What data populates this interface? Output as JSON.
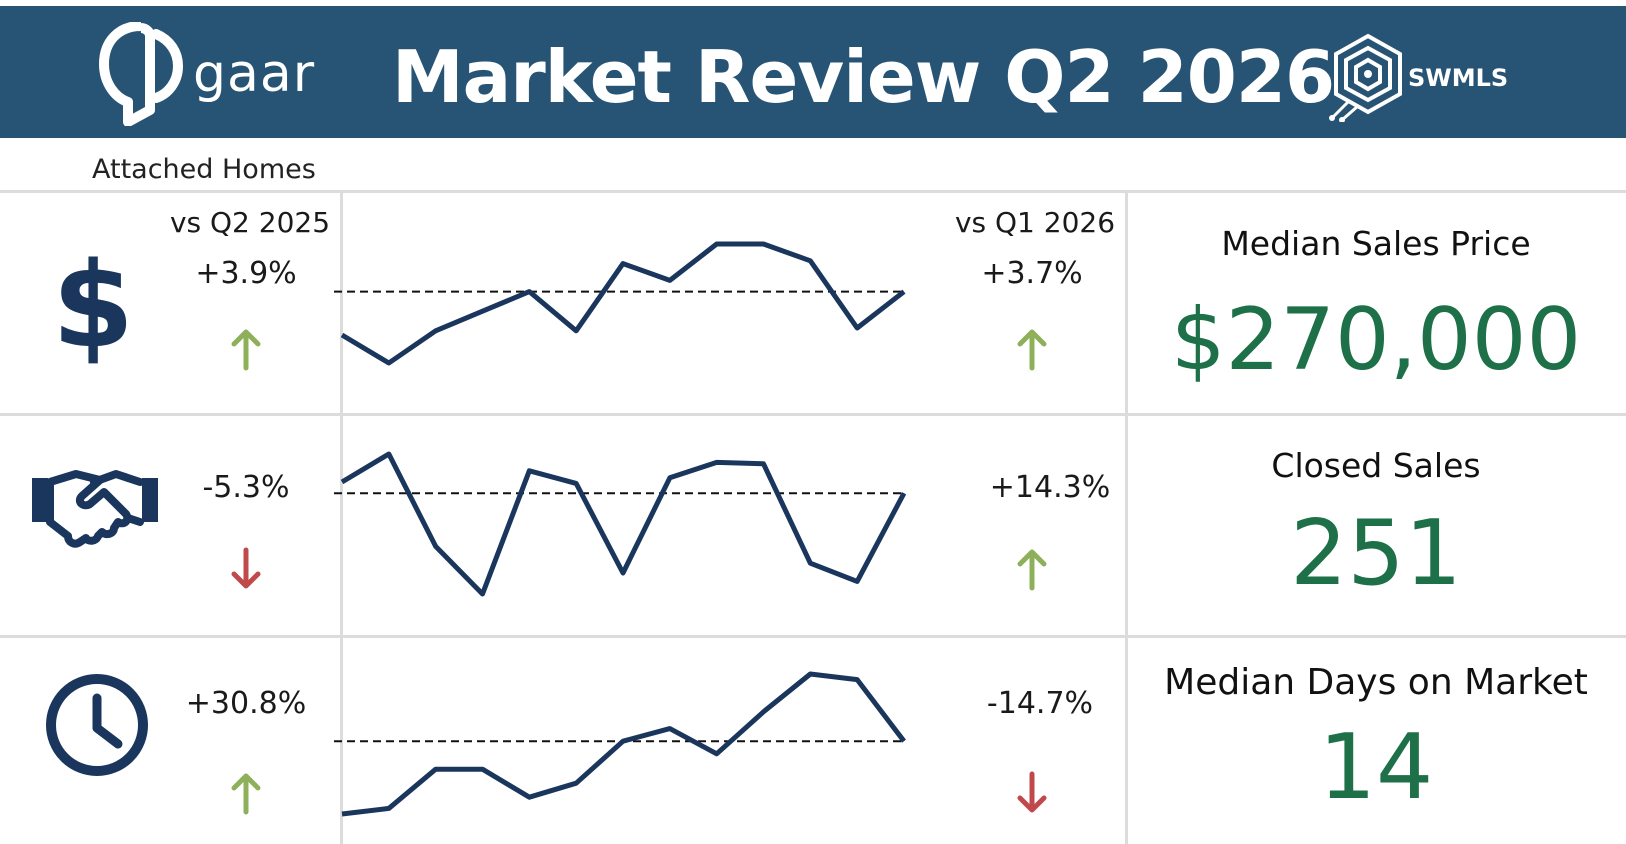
{
  "header": {
    "title": "Market Review Q2 2026",
    "left_logo_text": "gaar",
    "right_logo_text": "SWMLS",
    "background_color": "#275475"
  },
  "subtitle": "Attached Homes",
  "column_headers": {
    "year_over_year": "vs Q2 2025",
    "quarter_over_quarter": "vs Q1 2026"
  },
  "colors": {
    "up_arrow": "#8fb05b",
    "down_arrow": "#c0494b",
    "metric_value": "#1d7048",
    "line": "#1b365d",
    "icon": "#1b365d"
  },
  "metrics": [
    {
      "icon": "dollar-icon",
      "label": "Median Sales Price",
      "value": "$270,000",
      "vs_year": "+3.9%",
      "vs_year_direction": "up",
      "vs_quarter": "+3.7%",
      "vs_quarter_direction": "up"
    },
    {
      "icon": "handshake-icon",
      "label": "Closed Sales",
      "value": "251",
      "vs_year": "-5.3%",
      "vs_year_direction": "down",
      "vs_quarter": "+14.3%",
      "vs_quarter_direction": "up"
    },
    {
      "icon": "clock-icon",
      "label": "Median Days on Market",
      "value": "14",
      "vs_year": "+30.8%",
      "vs_year_direction": "up",
      "vs_quarter": "-14.7%",
      "vs_quarter_direction": "down"
    }
  ],
  "chart_data": [
    {
      "type": "line",
      "name": "median-sales-price-trend",
      "x": [
        1,
        2,
        3,
        4,
        5,
        6,
        7,
        8,
        9,
        10,
        11,
        12,
        13
      ],
      "values": [
        35,
        15,
        38,
        52,
        66,
        38,
        86,
        74,
        100,
        100,
        88,
        40,
        66
      ],
      "reference_line": 66,
      "ylim": [
        0,
        100
      ],
      "grid": false,
      "axes": false
    },
    {
      "type": "line",
      "name": "closed-sales-trend",
      "x": [
        1,
        2,
        3,
        4,
        5,
        6,
        7,
        8,
        9,
        10,
        11,
        12,
        13
      ],
      "values": [
        80,
        100,
        34,
        0,
        88,
        79,
        15,
        83,
        94,
        93,
        22,
        9,
        72
      ],
      "reference_line": 72,
      "ylim": [
        0,
        100
      ],
      "grid": false,
      "axes": false
    },
    {
      "type": "line",
      "name": "days-on-market-trend",
      "x": [
        1,
        2,
        3,
        4,
        5,
        6,
        7,
        8,
        9,
        10,
        11,
        12,
        13
      ],
      "values": [
        0,
        4,
        32,
        32,
        12,
        22,
        52,
        61,
        43,
        73,
        100,
        96,
        52
      ],
      "reference_line": 52,
      "ylim": [
        0,
        100
      ],
      "grid": false,
      "axes": false
    }
  ]
}
